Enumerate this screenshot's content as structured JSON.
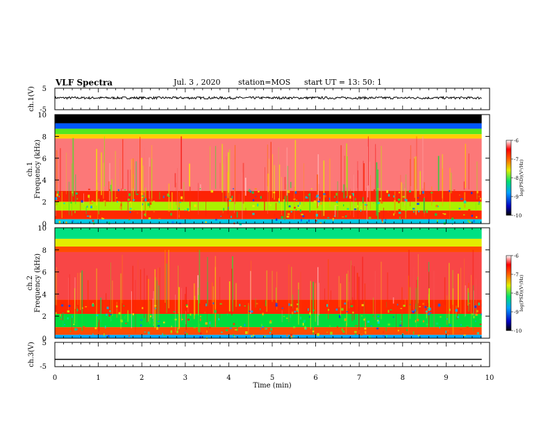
{
  "header": {
    "title": "VLF Spectra",
    "date": "Jul. 3 , 2020",
    "station": "station=MOS",
    "start": "start UT = 13: 50: 1"
  },
  "chart_data": [
    {
      "type": "line",
      "panel": "ch1",
      "ylabel": "ch.1(V)",
      "ylim": [
        -5,
        5
      ],
      "ytick_labels": [
        "5",
        "-5"
      ],
      "xlim": [
        0,
        10
      ],
      "trace_level": 0.5,
      "trace": "noisy waveform around constant level"
    },
    {
      "type": "heatmap",
      "panel": "ch1-spectrogram",
      "ylabel_channel": "ch.1",
      "ylabel": "Frequency (kHz)",
      "ylim": [
        0,
        10
      ],
      "ytick_labels": [
        "0",
        "2",
        "4",
        "6",
        "8",
        "10"
      ],
      "xlim": [
        0,
        10
      ],
      "bands": [
        {
          "from": 9.2,
          "to": 10,
          "level": -11
        },
        {
          "from": 8.7,
          "to": 9.2,
          "level": -9.3
        },
        {
          "from": 8.2,
          "to": 8.7,
          "level": -8
        },
        {
          "from": 7.8,
          "to": 8.2,
          "level": -7.4
        },
        {
          "from": 3.0,
          "to": 7.8,
          "level": -6.3
        },
        {
          "from": 2.0,
          "to": 3.0,
          "level": -6.8
        },
        {
          "from": 1.2,
          "to": 2.0,
          "level": -7.8
        },
        {
          "from": 0.4,
          "to": 1.2,
          "level": -6.9
        },
        {
          "from": 0,
          "to": 0.4,
          "level": -8.8
        }
      ],
      "colorbar": {
        "label": "log(PSD)(V²/Hz)",
        "range": [
          -10,
          -6
        ],
        "tick_labels": [
          "-6",
          "-7",
          "-8",
          "-9",
          "-10"
        ]
      }
    },
    {
      "type": "heatmap",
      "panel": "ch2-spectrogram",
      "ylabel_channel": "ch.2",
      "ylabel": "Frequency (kHz)",
      "ylim": [
        0,
        10
      ],
      "ytick_labels": [
        "0",
        "2",
        "4",
        "6",
        "8",
        "10"
      ],
      "xlim": [
        0,
        10
      ],
      "bands": [
        {
          "from": 9.0,
          "to": 10,
          "level": -8.4
        },
        {
          "from": 8.3,
          "to": 9.0,
          "level": -7.6
        },
        {
          "from": 7.8,
          "to": 8.3,
          "level": -7.0
        },
        {
          "from": 3.5,
          "to": 7.8,
          "level": -6.4
        },
        {
          "from": 2.2,
          "to": 3.5,
          "level": -6.9
        },
        {
          "from": 1.0,
          "to": 2.2,
          "level": -8.2
        },
        {
          "from": 0.3,
          "to": 1.0,
          "level": -7.0
        },
        {
          "from": 0,
          "to": 0.3,
          "level": -9.0
        }
      ],
      "colorbar": {
        "label": "log(PSD)(V²/Hz)",
        "range": [
          -10,
          -6
        ],
        "tick_labels": [
          "-6",
          "-7",
          "-8",
          "-9",
          "-10"
        ]
      }
    },
    {
      "type": "line",
      "panel": "ch3",
      "ylabel": "ch.3(V)",
      "ylim": [
        -5,
        5
      ],
      "ytick_labels": [
        "5",
        "-5"
      ],
      "xlim": [
        0,
        10
      ],
      "trace_level": -2.0,
      "trace": "flat line"
    }
  ],
  "xaxis": {
    "label": "Time (min)",
    "tick_labels": [
      "0",
      "1",
      "2",
      "3",
      "4",
      "5",
      "6",
      "7",
      "8",
      "9",
      "10"
    ]
  }
}
